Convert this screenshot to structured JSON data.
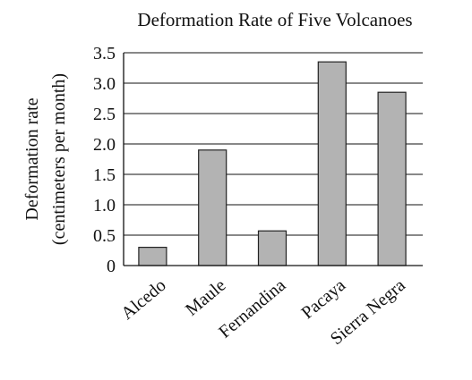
{
  "chart_data": {
    "type": "bar",
    "title": "Deformation Rate of Five Volcanoes",
    "ylabel_line1": "Deformation rate",
    "ylabel_line2": "(centimeters per month)",
    "xlabel": "",
    "categories": [
      "Alcedo",
      "Maule",
      "Fernandina",
      "Pacaya",
      "Sierra Negra"
    ],
    "values": [
      0.3,
      1.9,
      0.57,
      3.35,
      2.85
    ],
    "ylim": [
      0,
      3.5
    ],
    "yticks": [
      "0",
      "0.5",
      "1.0",
      "1.5",
      "2.0",
      "2.5",
      "3.0",
      "3.5"
    ],
    "grid": true,
    "bar_color": "#b3b3b3",
    "edge_color": "#222222"
  }
}
